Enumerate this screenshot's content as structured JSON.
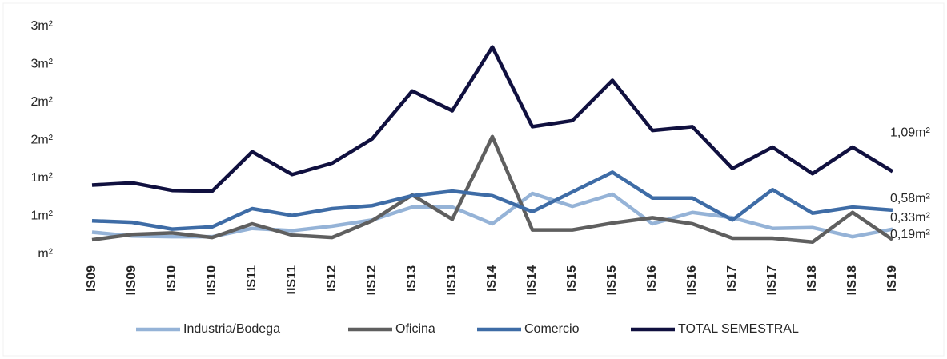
{
  "chart_data": {
    "type": "line",
    "categories": [
      "IS09",
      "IIS09",
      "IS10",
      "IIS10",
      "IS11",
      "IIS11",
      "IS12",
      "IIS12",
      "IS13",
      "IIS13",
      "IS14",
      "IIS14",
      "IS15",
      "IIS15",
      "IS16",
      "IIS16",
      "IS17",
      "IIS17",
      "IS18",
      "IIS18",
      "IS19"
    ],
    "ylim": [
      0,
      3
    ],
    "yticks": [
      {
        "value": 0,
        "label": "m²"
      },
      {
        "value": 0.5,
        "label": "1m²"
      },
      {
        "value": 1,
        "label": "1m²"
      },
      {
        "value": 1.5,
        "label": "2m²"
      },
      {
        "value": 2,
        "label": "2m²"
      },
      {
        "value": 2.5,
        "label": "3m²"
      },
      {
        "value": 3,
        "label": "3m²"
      }
    ],
    "legend": "bottom",
    "series": [
      {
        "name": "Industria/Bodega",
        "color": "#95b3d7",
        "values": [
          0.29,
          0.24,
          0.23,
          0.23,
          0.34,
          0.31,
          0.37,
          0.45,
          0.62,
          0.62,
          0.4,
          0.8,
          0.63,
          0.79,
          0.4,
          0.55,
          0.48,
          0.34,
          0.35,
          0.23,
          0.33
        ],
        "value_labels": [
          null,
          null,
          null,
          null,
          null,
          null,
          null,
          null,
          null,
          null,
          null,
          null,
          null,
          null,
          null,
          null,
          null,
          null,
          null,
          null,
          "0,33m²"
        ]
      },
      {
        "name": "Oficina",
        "color": "#5f5f5f",
        "values": [
          0.19,
          0.26,
          0.28,
          0.22,
          0.4,
          0.25,
          0.22,
          0.44,
          0.78,
          0.46,
          1.55,
          0.32,
          0.32,
          0.41,
          0.48,
          0.4,
          0.21,
          0.21,
          0.16,
          0.55,
          0.19
        ],
        "value_labels": [
          null,
          null,
          null,
          null,
          null,
          null,
          null,
          null,
          null,
          null,
          null,
          null,
          null,
          null,
          null,
          null,
          null,
          null,
          null,
          null,
          "0,19m²"
        ]
      },
      {
        "name": "Comercio",
        "color": "#3e6ca6",
        "values": [
          0.44,
          0.42,
          0.33,
          0.36,
          0.6,
          0.51,
          0.6,
          0.64,
          0.77,
          0.83,
          0.77,
          0.56,
          0.82,
          1.08,
          0.74,
          0.74,
          0.45,
          0.85,
          0.54,
          0.62,
          0.58
        ],
        "value_labels": [
          null,
          null,
          null,
          null,
          null,
          null,
          null,
          null,
          null,
          null,
          null,
          null,
          null,
          null,
          null,
          null,
          null,
          null,
          null,
          null,
          "0,58m²"
        ]
      },
      {
        "name": "TOTAL SEMESTRAL",
        "color": "#10103f",
        "values": [
          0.91,
          0.94,
          0.84,
          0.83,
          1.35,
          1.05,
          1.2,
          1.52,
          2.15,
          1.89,
          2.73,
          1.68,
          1.76,
          2.29,
          1.63,
          1.68,
          1.13,
          1.41,
          1.06,
          1.41,
          1.09
        ],
        "value_labels": [
          null,
          null,
          null,
          null,
          null,
          null,
          null,
          null,
          null,
          null,
          null,
          null,
          null,
          null,
          null,
          null,
          null,
          null,
          null,
          null,
          "1,09m²"
        ]
      }
    ]
  }
}
